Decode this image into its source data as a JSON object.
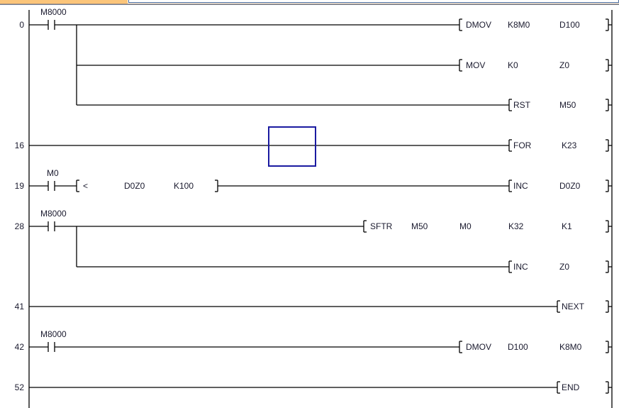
{
  "rungs": [
    {
      "step": "0",
      "contact": "M8000",
      "instructions": [
        [
          "DMOV",
          "K8M0",
          "D100"
        ],
        [
          "MOV",
          "K0",
          "Z0"
        ],
        [
          "RST",
          "M50"
        ]
      ]
    },
    {
      "step": "16",
      "instructions": [
        [
          "FOR",
          "K23"
        ]
      ]
    },
    {
      "step": "19",
      "contact": "M0",
      "compare": [
        "<",
        "D0Z0",
        "K100"
      ],
      "instructions": [
        [
          "INC",
          "D0Z0"
        ]
      ]
    },
    {
      "step": "28",
      "contact": "M8000",
      "instructions": [
        [
          "SFTR",
          "M50",
          "M0",
          "K32",
          "K1"
        ],
        [
          "INC",
          "Z0"
        ]
      ]
    },
    {
      "step": "41",
      "instructions": [
        [
          "NEXT"
        ]
      ]
    },
    {
      "step": "42",
      "contact": "M8000",
      "instructions": [
        [
          "DMOV",
          "D100",
          "K8M0"
        ]
      ]
    },
    {
      "step": "52",
      "instructions": [
        [
          "END"
        ]
      ]
    }
  ],
  "colors": {
    "cursor": "#1a1aa0",
    "text": "#1a1a2e",
    "tab": "#fbc57a"
  }
}
